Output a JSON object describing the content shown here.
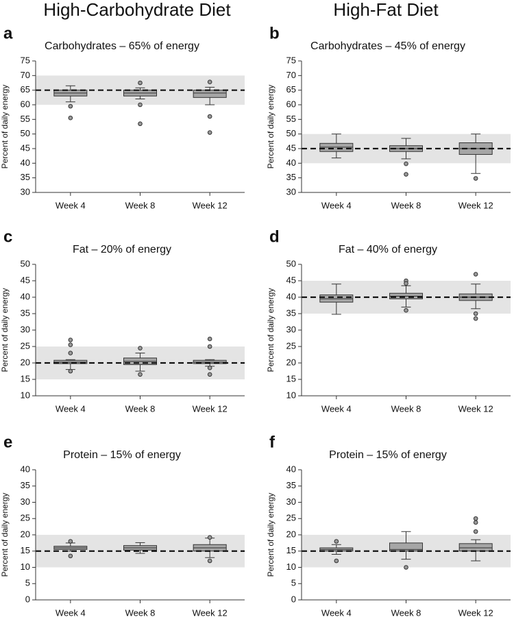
{
  "headers": [
    "High-Carbohydrate Diet",
    "High-Fat Diet"
  ],
  "chart_data": [
    {
      "type": "box",
      "label": "a",
      "title": "Carbohydrates – 65% of energy",
      "ylabel": "Percent of daily energy",
      "categories": [
        "Week 4",
        "Week 8",
        "Week 12"
      ],
      "color": "#a6a6a6",
      "range_color": "#e4e4e4",
      "target": 65,
      "target_range": [
        60,
        70
      ],
      "boxes": [
        {
          "whislo": 61,
          "q1": 63,
          "med": 64,
          "q3": 65,
          "whishi": 66.5,
          "fliers": [
            59.5,
            55.5
          ]
        },
        {
          "whislo": 62,
          "q1": 63,
          "med": 64,
          "q3": 65,
          "whishi": 65.8,
          "fliers": [
            67.5,
            60,
            53.5
          ]
        },
        {
          "whislo": 60,
          "q1": 62.5,
          "med": 64,
          "q3": 65,
          "whishi": 66,
          "fliers": [
            67.8,
            56,
            50.5
          ]
        }
      ],
      "ylim": [
        30,
        75
      ],
      "yticks": [
        30,
        35,
        40,
        45,
        50,
        55,
        60,
        65,
        70,
        75
      ]
    },
    {
      "type": "box",
      "label": "b",
      "title": "Carbohydrates – 45% of energy",
      "ylabel": "Percent of daily energy",
      "categories": [
        "Week 4",
        "Week 8",
        "Week 12"
      ],
      "color": "#a6a6a6",
      "range_color": "#e4e4e4",
      "target": 45,
      "target_range": [
        40,
        50
      ],
      "boxes": [
        {
          "whislo": 41.8,
          "q1": 44,
          "med": 45.5,
          "q3": 46.8,
          "whishi": 50,
          "fliers": []
        },
        {
          "whislo": 41.5,
          "q1": 44,
          "med": 45,
          "q3": 46,
          "whishi": 48.5,
          "fliers": [
            39.8,
            36.2
          ]
        },
        {
          "whislo": 36.5,
          "q1": 43,
          "med": 45,
          "q3": 47,
          "whishi": 50,
          "fliers": [
            34.8
          ]
        }
      ],
      "ylim": [
        30,
        75
      ],
      "yticks": [
        30,
        35,
        40,
        45,
        50,
        55,
        60,
        65,
        70,
        75
      ]
    },
    {
      "type": "box",
      "label": "c",
      "title": "Fat – 20% of energy",
      "ylabel": "Percent of daily energy",
      "categories": [
        "Week 4",
        "Week 8",
        "Week 12"
      ],
      "color": "#a6a6a6",
      "range_color": "#e4e4e4",
      "target": 20,
      "target_range": [
        15,
        25
      ],
      "boxes": [
        {
          "whislo": 18,
          "q1": 19.8,
          "med": 20.2,
          "q3": 20.8,
          "whishi": 21,
          "fliers": [
            27,
            25.5,
            23,
            17.5
          ]
        },
        {
          "whislo": 17.5,
          "q1": 19.5,
          "med": 20.5,
          "q3": 21.5,
          "whishi": 23,
          "fliers": [
            24.5,
            16.5
          ]
        },
        {
          "whislo": 19,
          "q1": 19.8,
          "med": 20.2,
          "q3": 20.8,
          "whishi": 21,
          "fliers": [
            27.3,
            25,
            18.5,
            16.5
          ]
        }
      ],
      "ylim": [
        10,
        50
      ],
      "yticks": [
        10,
        15,
        20,
        25,
        30,
        35,
        40,
        45,
        50
      ]
    },
    {
      "type": "box",
      "label": "d",
      "title": "Fat – 40% of energy",
      "ylabel": "Percent of daily energy",
      "categories": [
        "Week 4",
        "Week 8",
        "Week 12"
      ],
      "color": "#a6a6a6",
      "range_color": "#e4e4e4",
      "target": 40,
      "target_range": [
        35,
        45
      ],
      "boxes": [
        {
          "whislo": 34.8,
          "q1": 38.5,
          "med": 39.5,
          "q3": 40.7,
          "whishi": 44,
          "fliers": []
        },
        {
          "whislo": 37,
          "q1": 39.5,
          "med": 40.3,
          "q3": 41.2,
          "whishi": 43.5,
          "fliers": [
            45,
            44.2,
            36
          ]
        },
        {
          "whislo": 36.5,
          "q1": 39,
          "med": 40,
          "q3": 41,
          "whishi": 44,
          "fliers": [
            47,
            35,
            33.5
          ]
        }
      ],
      "ylim": [
        10,
        50
      ],
      "yticks": [
        10,
        15,
        20,
        25,
        30,
        35,
        40,
        45,
        50
      ]
    },
    {
      "type": "box",
      "label": "e",
      "title": "Protein – 15% of energy",
      "ylabel": "Percent of daily energy",
      "categories": [
        "Week 4",
        "Week 8",
        "Week 12"
      ],
      "color": "#a6a6a6",
      "range_color": "#e4e4e4",
      "target": 15,
      "target_range": [
        10,
        20
      ],
      "boxes": [
        {
          "whislo": 15,
          "q1": 15.5,
          "med": 16,
          "q3": 16.5,
          "whishi": 17.5,
          "fliers": [
            18,
            13.5
          ]
        },
        {
          "whislo": 14.3,
          "q1": 15.3,
          "med": 16,
          "q3": 16.7,
          "whishi": 17.6,
          "fliers": []
        },
        {
          "whislo": 13,
          "q1": 15,
          "med": 16,
          "q3": 17,
          "whishi": 19,
          "fliers": [
            19.2,
            12
          ]
        }
      ],
      "ylim": [
        0,
        40
      ],
      "yticks": [
        0,
        5,
        10,
        15,
        20,
        25,
        30,
        35,
        40
      ]
    },
    {
      "type": "box",
      "label": "f",
      "title": "Protein – 15% of energy",
      "ylabel": "Percent of daily energy",
      "categories": [
        "Week 4",
        "Week 8",
        "Week 12"
      ],
      "color": "#a6a6a6",
      "range_color": "#e4e4e4",
      "target": 15,
      "target_range": [
        10,
        20
      ],
      "boxes": [
        {
          "whislo": 14,
          "q1": 15,
          "med": 15.5,
          "q3": 16,
          "whishi": 17,
          "fliers": [
            18,
            12
          ]
        },
        {
          "whislo": 12.5,
          "q1": 15,
          "med": 15.5,
          "q3": 17.5,
          "whishi": 21,
          "fliers": [
            10
          ]
        },
        {
          "whislo": 12,
          "q1": 15,
          "med": 16,
          "q3": 17.3,
          "whishi": 18.5,
          "fliers": [
            25,
            23.8,
            21
          ]
        }
      ],
      "ylim": [
        0,
        40
      ],
      "yticks": [
        0,
        5,
        10,
        15,
        20,
        25,
        30,
        35,
        40
      ]
    }
  ]
}
